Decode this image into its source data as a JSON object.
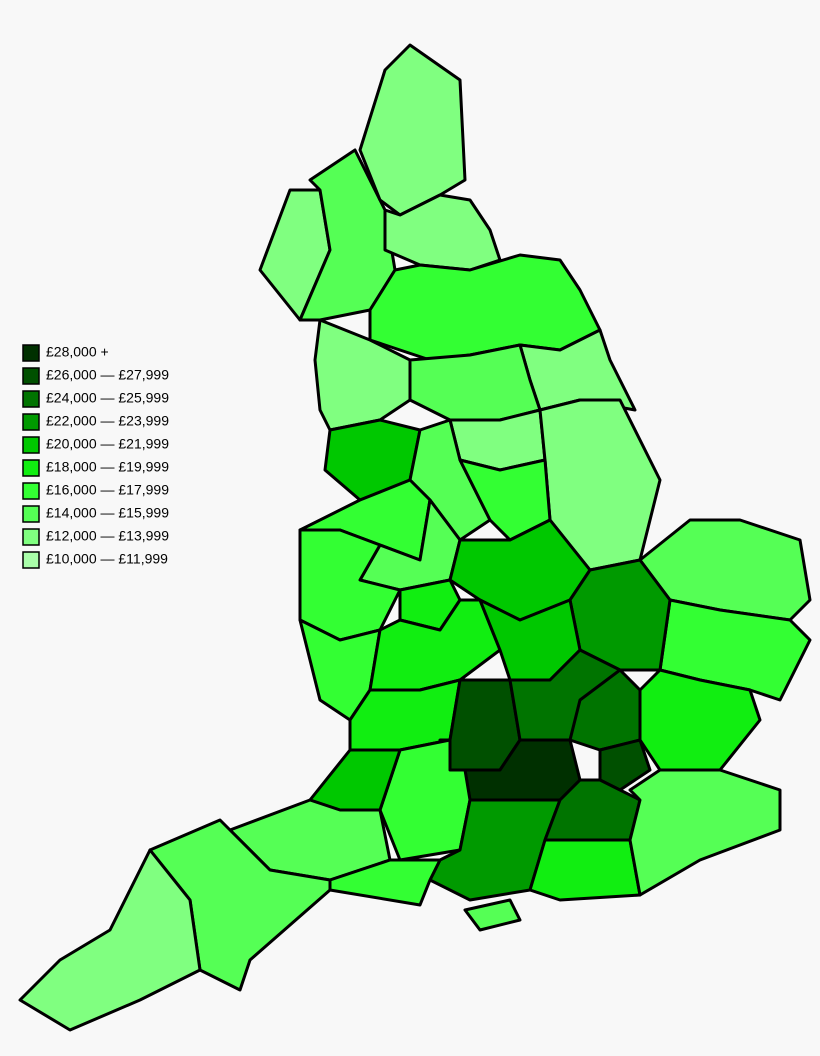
{
  "legend": {
    "items": [
      {
        "label": "£28,000 +",
        "color": "#003000"
      },
      {
        "label": "£26,000 — £27,999",
        "color": "#005000"
      },
      {
        "label": "£24,000 — £25,999",
        "color": "#007400"
      },
      {
        "label": "£22,000 — £23,999",
        "color": "#009a00"
      },
      {
        "label": "£20,000 — £21,999",
        "color": "#00c800"
      },
      {
        "label": "£18,000 — £19,999",
        "color": "#11ee11"
      },
      {
        "label": "£16,000 — £17,999",
        "color": "#33ff33"
      },
      {
        "label": "£14,000 — £15,999",
        "color": "#55ff55"
      },
      {
        "label": "£12,000 — £13,999",
        "color": "#80ff80"
      },
      {
        "label": "£10,000 — £11,999",
        "color": "#aaffaa"
      }
    ]
  }
}
